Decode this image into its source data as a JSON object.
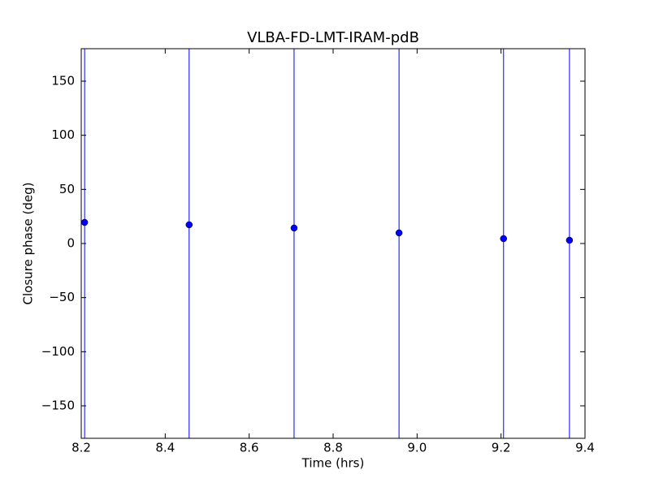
{
  "chart_data": {
    "type": "errorbar",
    "title": "VLBA-FD-LMT-IRAM-pdB",
    "xlabel": "Time (hrs)",
    "ylabel": "Closure phase (deg)",
    "x": [
      8.208,
      8.457,
      8.707,
      8.957,
      9.206,
      9.363
    ],
    "series": [
      {
        "color": "#0000ff",
        "values": [
          19.5,
          17.3,
          14.3,
          9.8,
          4.5,
          3.0
        ],
        "errors": [
          200,
          200,
          200,
          200,
          200,
          200
        ]
      }
    ],
    "xlim": [
      8.2,
      9.4
    ],
    "xticks": [
      8.2,
      8.4,
      8.6,
      8.8,
      {
        "value": 9,
        "label": "9.0"
      },
      9.2,
      9.4
    ],
    "ylim": [
      -180,
      180
    ],
    "yticks": [
      {
        "value": -150,
        "label": "−150"
      },
      {
        "value": -100,
        "label": "−100"
      },
      {
        "value": -50,
        "label": "−50"
      },
      0,
      50,
      100,
      150
    ],
    "grid": false
  }
}
